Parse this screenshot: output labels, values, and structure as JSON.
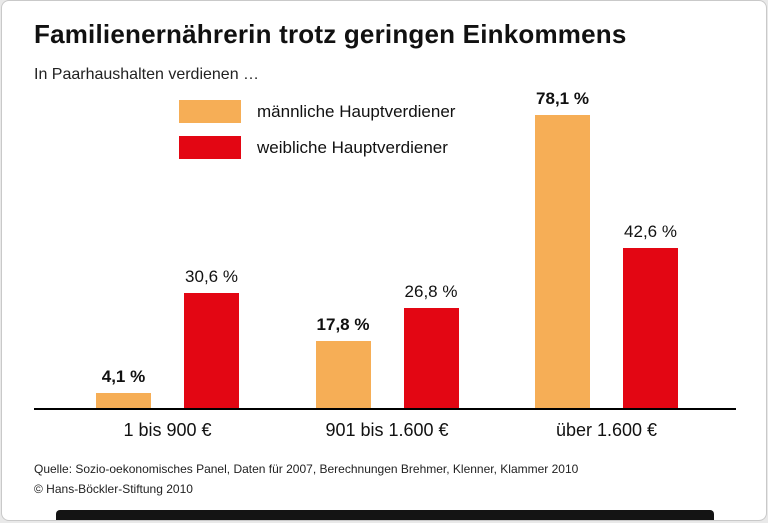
{
  "chart_data": {
    "type": "bar",
    "title": "Familienernährerin trotz geringen Einkommens",
    "subtitle": "In Paarhaushalten verdienen …",
    "categories": [
      "1 bis 900 €",
      "901 bis 1.600 €",
      "über 1.600 €"
    ],
    "series": [
      {
        "name": "männliche Hauptverdiener",
        "color": "#F6AE56",
        "values": [
          4.1,
          17.8,
          78.1
        ],
        "labels": [
          "4,1 %",
          "17,8 %",
          "78,1 %"
        ],
        "label_bold": true
      },
      {
        "name": "weibliche Hauptverdiener",
        "color": "#E30613",
        "values": [
          30.6,
          26.8,
          42.6
        ],
        "labels": [
          "30,6 %",
          "26,8 %",
          "42,6 %"
        ],
        "label_bold": false
      }
    ],
    "ylim": [
      0,
      80
    ],
    "grid": false,
    "legend_position": "top-left"
  },
  "footer": {
    "source": "Quelle: Sozio-oekonomisches Panel, Daten für 2007, Berechnungen Brehmer, Klenner, Klammer 2010",
    "copyright": "© Hans-Böckler-Stiftung 2010"
  }
}
